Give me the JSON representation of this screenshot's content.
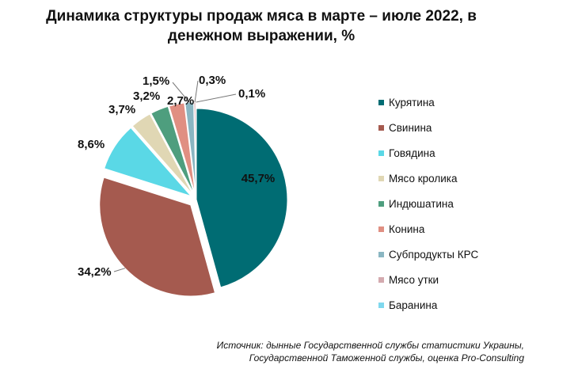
{
  "chart_data": {
    "type": "pie",
    "title": "Динамика структуры продаж мяса в марте – июле 2022, в денежном выражении, %",
    "categories": [
      "Курятина",
      "Свинина",
      "Говядина",
      "Мясо кролика",
      "Индюшатина",
      "Конина",
      "Субпродукты КРС",
      "Мясо утки",
      "Баранина"
    ],
    "values": [
      45.7,
      34.2,
      8.6,
      3.7,
      3.2,
      2.7,
      1.5,
      0.3,
      0.1
    ],
    "labels": [
      "45,7%",
      "34,2%",
      "8,6%",
      "3,7%",
      "3,2%",
      "2,7%",
      "1,5%",
      "0,3%",
      "0,1%"
    ],
    "colors": [
      "#006c73",
      "#a55a4f",
      "#5ad8e6",
      "#e0d7b4",
      "#4e9e7e",
      "#e08f82",
      "#8ab6c2",
      "#d4aaaf",
      "#7fd8ee"
    ],
    "legend_position": "right"
  },
  "source": {
    "line1": "Источник: дынные Государственной службы статистики Украины,",
    "line2": "Государственной Таможенной службы, оценка Pro-Consulting"
  }
}
